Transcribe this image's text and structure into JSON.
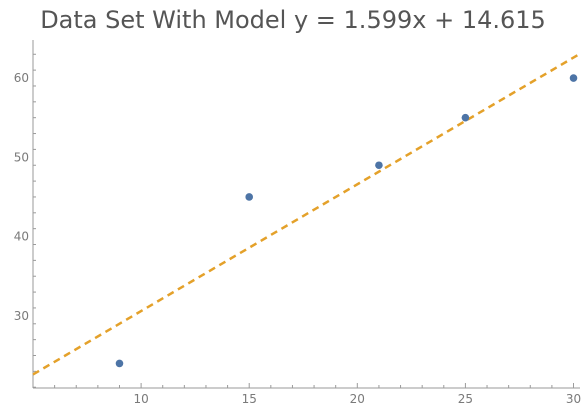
{
  "chart_data": {
    "type": "scatter",
    "title": "Data Set With Model y = 1.599x + 14.615",
    "xlabel": "",
    "ylabel": "",
    "x_ticks": [
      10,
      15,
      20,
      25,
      30
    ],
    "y_ticks": [
      30,
      40,
      50,
      60
    ],
    "xlim": [
      5.0,
      30.3
    ],
    "ylim": [
      20.9,
      64.8
    ],
    "series": [
      {
        "kind": "points",
        "color": "#4d74a6",
        "points": [
          {
            "x": 9,
            "y": 24
          },
          {
            "x": 15,
            "y": 45
          },
          {
            "x": 21,
            "y": 49
          },
          {
            "x": 25,
            "y": 55
          },
          {
            "x": 30,
            "y": 60
          }
        ]
      },
      {
        "kind": "model-line",
        "color": "#e4a12a",
        "style": "dashed",
        "slope": 1.599,
        "intercept": 14.615
      }
    ],
    "grid": false,
    "legend": "none"
  }
}
